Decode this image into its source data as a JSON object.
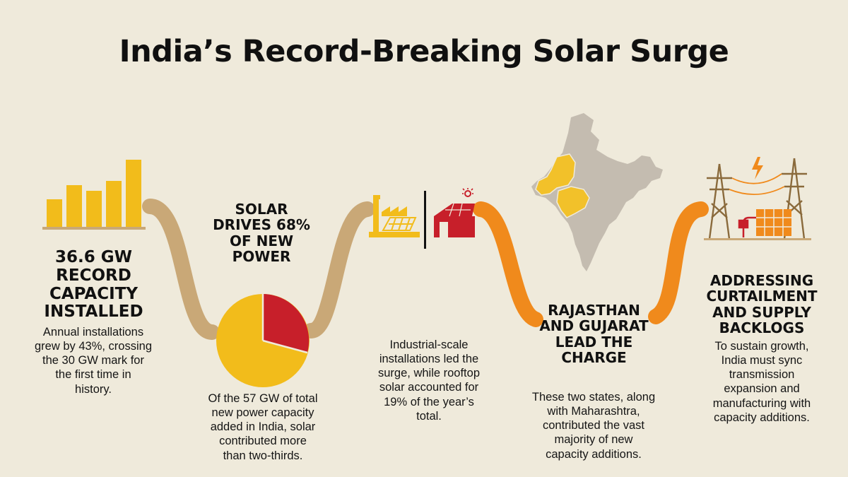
{
  "title": "India’s Record-Breaking Solar Surge",
  "colors": {
    "background": "#efeadb",
    "gold": "#f2bc1b",
    "red": "#c71f2a",
    "tan": "#c9a877",
    "orange": "#f08a1c",
    "map_gray": "#c4bcb0",
    "map_highlight": "#f2c12a"
  },
  "sections": [
    {
      "icon": "bar-chart-icon",
      "heading_lines": [
        "36.6 GW",
        "RECORD",
        "CAPACITY",
        "INSTALLED"
      ],
      "body_lines": [
        "Annual installations",
        "grew by 43%, crossing",
        "the 30 GW mark for",
        "the first time in",
        "history."
      ]
    },
    {
      "icon": "pie-chart-icon",
      "heading_lines": [
        "SOLAR",
        "DRIVES 68%",
        "OF NEW",
        "POWER"
      ],
      "body_lines": [
        "Of the 57 GW of total",
        "new power capacity",
        "added in India, solar",
        "contributed more",
        "than two-thirds."
      ]
    },
    {
      "icon": "factory-and-rooftop-icon",
      "heading_lines": [],
      "body_lines": [
        "Industrial-scale",
        "installations led the",
        "surge, while rooftop",
        "solar accounted for",
        "19% of the year’s",
        "total."
      ]
    },
    {
      "icon": "india-map-icon",
      "heading_lines": [
        "RAJASTHAN",
        "AND GUJARAT",
        "LEAD THE",
        "CHARGE"
      ],
      "body_lines": [
        "These two states, along",
        "with Maharashtra,",
        "contributed the vast",
        "majority of new",
        "capacity additions."
      ]
    },
    {
      "icon": "transmission-tower-icon",
      "heading_lines": [
        "ADDRESSING",
        "CURTAILMENT",
        "AND SUPPLY",
        "BACKLOGS"
      ],
      "body_lines": [
        "To sustain growth,",
        "India must sync",
        "transmission",
        "expansion and",
        "manufacturing with",
        "capacity additions."
      ]
    }
  ]
}
